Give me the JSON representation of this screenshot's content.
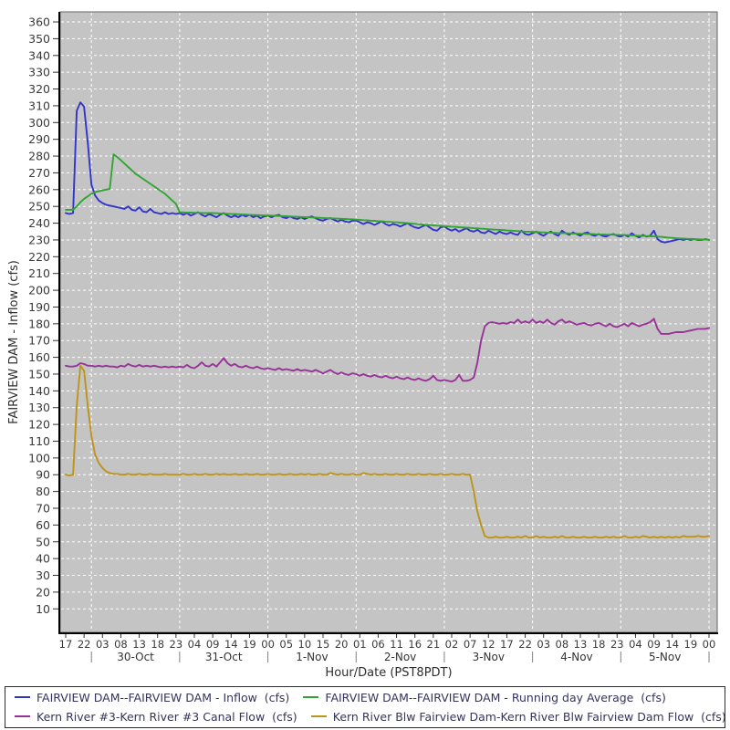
{
  "chart_data": {
    "type": "line",
    "title": "",
    "xlabel": "Hour/Date (PST8PDT)",
    "ylabel": "FAIRVIEW DAM - Inflow (cfs)",
    "x_start": "29-Oct 17:00",
    "x_end": "6-Nov 00:00",
    "x_step_hours": 1,
    "ylim": [
      -4,
      366
    ],
    "yticks": {
      "min": 10,
      "max": 360,
      "step": 10
    },
    "plot_bg": "#c4c4c4",
    "grid_color": "#ffffff",
    "hour_tick_interval": 5,
    "hour_tick_labels": [
      "17",
      "22",
      "03",
      "08",
      "13",
      "18",
      "23",
      "04",
      "09",
      "14",
      "19",
      "00",
      "05",
      "10",
      "15",
      "20",
      "01",
      "06",
      "11",
      "16",
      "21",
      "02",
      "07",
      "12",
      "17",
      "22",
      "03",
      "08",
      "13",
      "18",
      "23",
      "04",
      "09",
      "14",
      "19",
      "00"
    ],
    "date_labels": [
      {
        "label": "30-Oct",
        "t": 19
      },
      {
        "label": "31-Oct",
        "t": 43
      },
      {
        "label": "1-Nov",
        "t": 67
      },
      {
        "label": "2-Nov",
        "t": 91
      },
      {
        "label": "3-Nov",
        "t": 115
      },
      {
        "label": "4-Nov",
        "t": 139
      },
      {
        "label": "5-Nov",
        "t": 163
      }
    ],
    "day_boundaries_t": [
      7,
      31,
      55,
      79,
      103,
      127,
      151,
      175
    ],
    "series": [
      {
        "name": "FAIRVIEW DAM--FAIRVIEW DAM - Inflow  (cfs)",
        "color": "#3233cb",
        "values": [
          246,
          245.5,
          246,
          307,
          312,
          309.5,
          288,
          263,
          256.5,
          253.5,
          252,
          251,
          250.5,
          250,
          249.5,
          249,
          248.5,
          250,
          248,
          247.5,
          249.5,
          247,
          246.5,
          248.5,
          246.5,
          246,
          245.5,
          246.5,
          245.5,
          246,
          245.5,
          246,
          245,
          246,
          244.5,
          245.5,
          246.5,
          245,
          244,
          245.5,
          244.5,
          243.5,
          245,
          246,
          244.5,
          243.5,
          244.5,
          243.5,
          245,
          244,
          245,
          243.5,
          244.5,
          243,
          244,
          244.5,
          243.5,
          244.5,
          245,
          243.5,
          243,
          244,
          243,
          242.5,
          243.5,
          242.5,
          243.5,
          244,
          243,
          242,
          241.5,
          242.5,
          243,
          242,
          241,
          242,
          241,
          240.5,
          241.5,
          241.5,
          240.5,
          239.5,
          240.5,
          240,
          239,
          240,
          241,
          239.5,
          238.5,
          239.5,
          239,
          238,
          239,
          240,
          238.5,
          237.5,
          237,
          238,
          239,
          237.5,
          236,
          235.5,
          237.5,
          238,
          236.5,
          235.5,
          236.5,
          235,
          236,
          237,
          235.5,
          235,
          236,
          234.5,
          234,
          235.5,
          234.5,
          233.5,
          235,
          234,
          233.5,
          234.5,
          233.5,
          233,
          235.5,
          233.5,
          233,
          234,
          235,
          233.5,
          232.5,
          234,
          235,
          233.5,
          232.5,
          235.5,
          234,
          233,
          234.5,
          233.5,
          232.5,
          234,
          234.5,
          233,
          232.5,
          233.5,
          232.5,
          232,
          233,
          233.5,
          232.5,
          232,
          233,
          232,
          234,
          232.5,
          231.5,
          233,
          232,
          232.5,
          235.5,
          230.5,
          229,
          228.5,
          229,
          229.5,
          230,
          230.5,
          230,
          230.5,
          230,
          230.5,
          230,
          230,
          230.5,
          230
        ]
      },
      {
        "name": "FAIRVIEW DAM--FAIRVIEW DAM - Running day Average  (cfs)",
        "color": "#32a432",
        "values": [
          248,
          248,
          248,
          250,
          252.5,
          254.5,
          256,
          257.5,
          258.5,
          259,
          259.5,
          260,
          260.5,
          281,
          279.5,
          277.5,
          275.5,
          273.5,
          271.5,
          269.5,
          268,
          266.5,
          265,
          263.5,
          262,
          260.5,
          259,
          257.5,
          255.5,
          253.5,
          251.5,
          246.5,
          246.4,
          246.3,
          246.3,
          246.2,
          246.2,
          246.1,
          246.1,
          246,
          246,
          245.9,
          245.8,
          245.7,
          245.6,
          245.5,
          245.4,
          245.3,
          245.2,
          245.1,
          245,
          244.9,
          244.8,
          244.7,
          244.6,
          244.6,
          244.5,
          244.4,
          244.3,
          244.2,
          244.1,
          244,
          243.9,
          243.8,
          243.7,
          243.6,
          243.5,
          243.4,
          243.3,
          243.2,
          243.1,
          243,
          242.9,
          242.8,
          242.7,
          242.6,
          242.5,
          242.4,
          242.3,
          242.1,
          242,
          241.8,
          241.7,
          241.5,
          241.4,
          241.2,
          241.1,
          240.9,
          240.8,
          240.6,
          240.5,
          240.3,
          240.2,
          240,
          239.8,
          239.6,
          239.4,
          239.2,
          239,
          238.9,
          238.7,
          238.5,
          238.4,
          238.2,
          238.1,
          237.9,
          237.8,
          237.6,
          237.5,
          237.3,
          237.2,
          237,
          236.9,
          236.7,
          236.6,
          236.4,
          236.3,
          236.1,
          236,
          235.9,
          235.7,
          235.6,
          235.4,
          235.3,
          235.1,
          235,
          234.9,
          234.8,
          234.7,
          234.6,
          234.5,
          234.4,
          234.3,
          234.2,
          234.1,
          234,
          234,
          233.9,
          233.8,
          233.7,
          233.7,
          233.6,
          233.5,
          233.5,
          233.4,
          233.3,
          233.3,
          233.2,
          233.1,
          233.1,
          233,
          233,
          232.9,
          232.8,
          232.7,
          232.6,
          232.5,
          232.4,
          232.3,
          232.2,
          232.1,
          232,
          231.8,
          231.6,
          231.4,
          231.2,
          231,
          230.9,
          230.8,
          230.7,
          230.6,
          230.5,
          230.4,
          230.3,
          230.3,
          230.2
        ]
      },
      {
        "name": "Kern River #3-Kern River #3 Canal Flow  (cfs)",
        "color": "#993399",
        "values": [
          155,
          154.5,
          154.5,
          155,
          156.5,
          156,
          155,
          155,
          154.5,
          155,
          154.5,
          155,
          154.5,
          154.5,
          154,
          155,
          154.5,
          156,
          155,
          154.5,
          155.5,
          154.5,
          155,
          154.5,
          155,
          154.5,
          154,
          154.5,
          154,
          154.5,
          154,
          154.5,
          154,
          155.5,
          154,
          153.5,
          155,
          157,
          155,
          154.5,
          156,
          154.5,
          157,
          159.5,
          156.5,
          155,
          156,
          154.5,
          154,
          155,
          154,
          153.5,
          154.5,
          153.5,
          153,
          153.5,
          153,
          152.5,
          153.5,
          152.5,
          153,
          152.5,
          152,
          153,
          152,
          152.5,
          152,
          151.5,
          152.5,
          151.5,
          150.5,
          151.5,
          152.5,
          151,
          150,
          151,
          150,
          149.5,
          150.5,
          150,
          149,
          150,
          149,
          148.5,
          149.5,
          148.5,
          148,
          149,
          148,
          147.5,
          148.5,
          147.5,
          147,
          148,
          147,
          146.5,
          147.5,
          146.5,
          146,
          147,
          149,
          146.5,
          146,
          146.5,
          146,
          145.5,
          146.5,
          149.5,
          146,
          146,
          146.5,
          148,
          157,
          170,
          178.5,
          180.5,
          181,
          180.5,
          180,
          180.5,
          180,
          181,
          180.5,
          182.5,
          180.5,
          181.5,
          180.5,
          182.5,
          180.5,
          181.5,
          180.5,
          182.5,
          180.5,
          179.5,
          181.5,
          182.5,
          180.5,
          181.5,
          180.5,
          179.5,
          180,
          180.5,
          179.5,
          179,
          180,
          180.5,
          179.5,
          178.5,
          180,
          178.5,
          178,
          179,
          180,
          178.5,
          180.5,
          179.5,
          178.5,
          179.5,
          180,
          181,
          183,
          177,
          174,
          174,
          174,
          174.5,
          175,
          175,
          175,
          175.5,
          176,
          176.5,
          177,
          177,
          177,
          177.5
        ]
      },
      {
        "name": "Kern River Blw Fairview Dam-Kern River Blw Fairview Dam Flow  (cfs)",
        "color": "#bd9418",
        "values": [
          90,
          89.5,
          90,
          131,
          155,
          152,
          131,
          113,
          102,
          97,
          94,
          92,
          91,
          90.5,
          90.5,
          90,
          90,
          90.5,
          90,
          90,
          90.5,
          90,
          90,
          90.5,
          90,
          90,
          90,
          90.5,
          90,
          90,
          90,
          90,
          90.5,
          90,
          90,
          90.5,
          90,
          90,
          90.5,
          90,
          90,
          90.5,
          90,
          90.5,
          90,
          90,
          90.5,
          90,
          90,
          90.5,
          90,
          90,
          90.5,
          90,
          90,
          90.5,
          90,
          90,
          90.5,
          90,
          90,
          90.5,
          90,
          90,
          90.5,
          90,
          90.5,
          90,
          90,
          90.5,
          90,
          90,
          91,
          90.5,
          90,
          90.5,
          90,
          90,
          90.5,
          90,
          90,
          91,
          90.5,
          90,
          90.5,
          90,
          90,
          90.5,
          90,
          90,
          90.5,
          90,
          90,
          90.5,
          90,
          90,
          90.5,
          90,
          90,
          90.5,
          90,
          90,
          90.5,
          90,
          90,
          90.5,
          90,
          90,
          90.5,
          90,
          90,
          80,
          68,
          60,
          53.5,
          52.5,
          52.5,
          53,
          52.5,
          52.5,
          53,
          52.5,
          52.5,
          53,
          52.5,
          53.5,
          52.5,
          52.5,
          53.5,
          52.5,
          53,
          52.5,
          52.5,
          53,
          52.5,
          53.5,
          52.5,
          52.5,
          53,
          52.5,
          52.5,
          53,
          52.5,
          52.5,
          53,
          52.5,
          52.5,
          53,
          52.5,
          53,
          52.5,
          52.5,
          53.5,
          52.5,
          52.5,
          53,
          52.5,
          53.5,
          53,
          52.5,
          53,
          52.5,
          53,
          52.5,
          53,
          52.5,
          53,
          52.5,
          53.5,
          53,
          53,
          53,
          53.5,
          53,
          53,
          53.5
        ]
      }
    ]
  }
}
